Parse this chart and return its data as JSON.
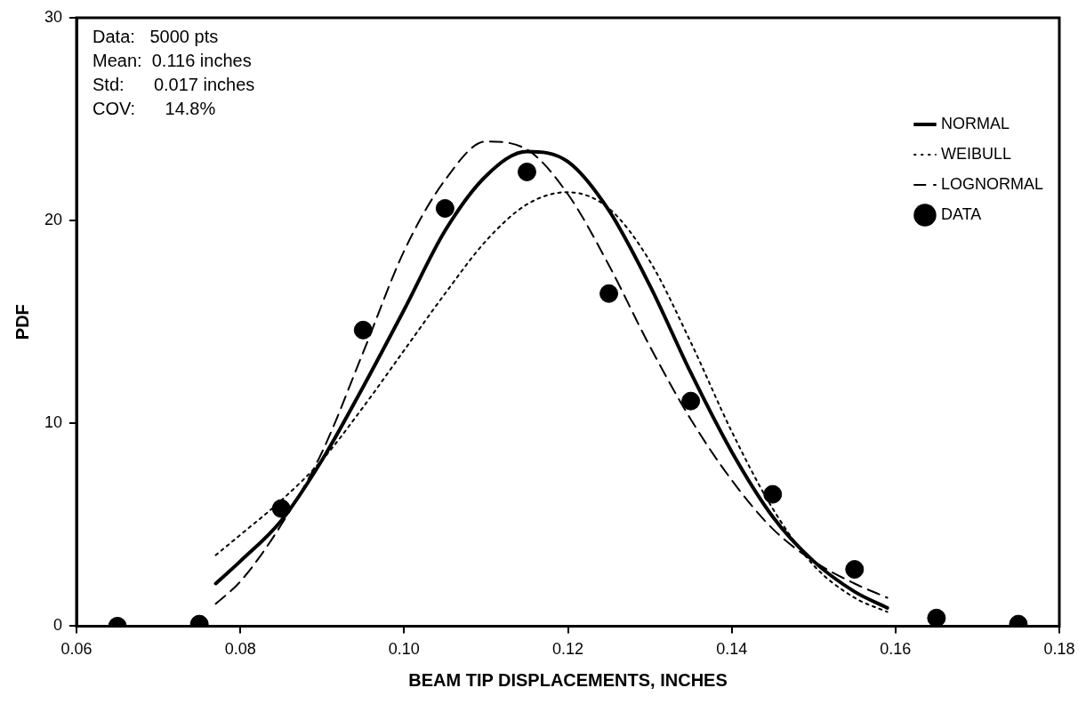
{
  "chart_data": {
    "type": "line",
    "xlabel": "BEAM TIP DISPLACEMENTS, INCHES",
    "ylabel": "PDF",
    "xlim": [
      0.06,
      0.18
    ],
    "xticks": [
      {
        "value": 0.06,
        "label": "0.06"
      },
      {
        "value": 0.08,
        "label": "0.08"
      },
      {
        "value": 0.1,
        "label": "0.10"
      },
      {
        "value": 0.12,
        "label": "0.12"
      },
      {
        "value": 0.14,
        "label": "0.14"
      },
      {
        "value": 0.16,
        "label": "0.16"
      },
      {
        "value": 0.18,
        "label": "0.18"
      }
    ],
    "ylim": [
      0,
      30
    ],
    "yticks": [
      0,
      10,
      20,
      30
    ],
    "grid": false,
    "legend": "top right",
    "annotations": [
      "Data:   5000 pts",
      "Mean:  0.116 inches",
      "Std:      0.017 inches",
      "COV:      14.8%"
    ],
    "series": [
      {
        "name": "NORMAL",
        "type": "line",
        "color": "#000000",
        "line_style": "solid",
        "marker": "none",
        "x": [
          0.077,
          0.08,
          0.085,
          0.09,
          0.095,
          0.1,
          0.105,
          0.11,
          0.115,
          0.12,
          0.125,
          0.13,
          0.135,
          0.14,
          0.145,
          0.15,
          0.155,
          0.159
        ],
        "values": [
          2.1,
          3.2,
          5.2,
          8.2,
          11.8,
          15.6,
          19.5,
          22.2,
          23.4,
          22.9,
          20.5,
          16.8,
          12.5,
          8.6,
          5.4,
          3.2,
          1.7,
          0.9
        ]
      },
      {
        "name": "WEIBULL",
        "type": "line",
        "color": "#000000",
        "line_style": "dotted",
        "marker": "none",
        "x": [
          0.077,
          0.08,
          0.085,
          0.09,
          0.095,
          0.1,
          0.105,
          0.11,
          0.115,
          0.12,
          0.125,
          0.13,
          0.135,
          0.14,
          0.145,
          0.15,
          0.155,
          0.159
        ],
        "values": [
          3.5,
          4.5,
          6.2,
          8.2,
          10.8,
          13.6,
          16.4,
          19.0,
          20.8,
          21.4,
          20.6,
          18.0,
          14.0,
          9.6,
          5.8,
          3.0,
          1.4,
          0.7
        ]
      },
      {
        "name": "LOGNORMAL",
        "type": "line",
        "color": "#000000",
        "line_style": "dashed",
        "marker": "none",
        "x": [
          0.077,
          0.08,
          0.085,
          0.09,
          0.095,
          0.1,
          0.105,
          0.11,
          0.115,
          0.12,
          0.125,
          0.13,
          0.135,
          0.14,
          0.145,
          0.15,
          0.155,
          0.159
        ],
        "values": [
          1.1,
          2.2,
          5.0,
          8.6,
          13.5,
          18.5,
          22.0,
          23.9,
          23.5,
          21.3,
          17.8,
          13.8,
          10.2,
          7.2,
          4.8,
          3.2,
          2.1,
          1.4
        ]
      },
      {
        "name": "DATA",
        "type": "scatter",
        "color": "#000000",
        "marker": "circle",
        "x": [
          0.065,
          0.075,
          0.085,
          0.095,
          0.105,
          0.115,
          0.125,
          0.135,
          0.145,
          0.155,
          0.165,
          0.175
        ],
        "values": [
          0,
          0.1,
          5.8,
          14.6,
          20.6,
          22.4,
          16.4,
          11.1,
          6.5,
          2.8,
          0.4,
          0.1
        ]
      }
    ]
  }
}
